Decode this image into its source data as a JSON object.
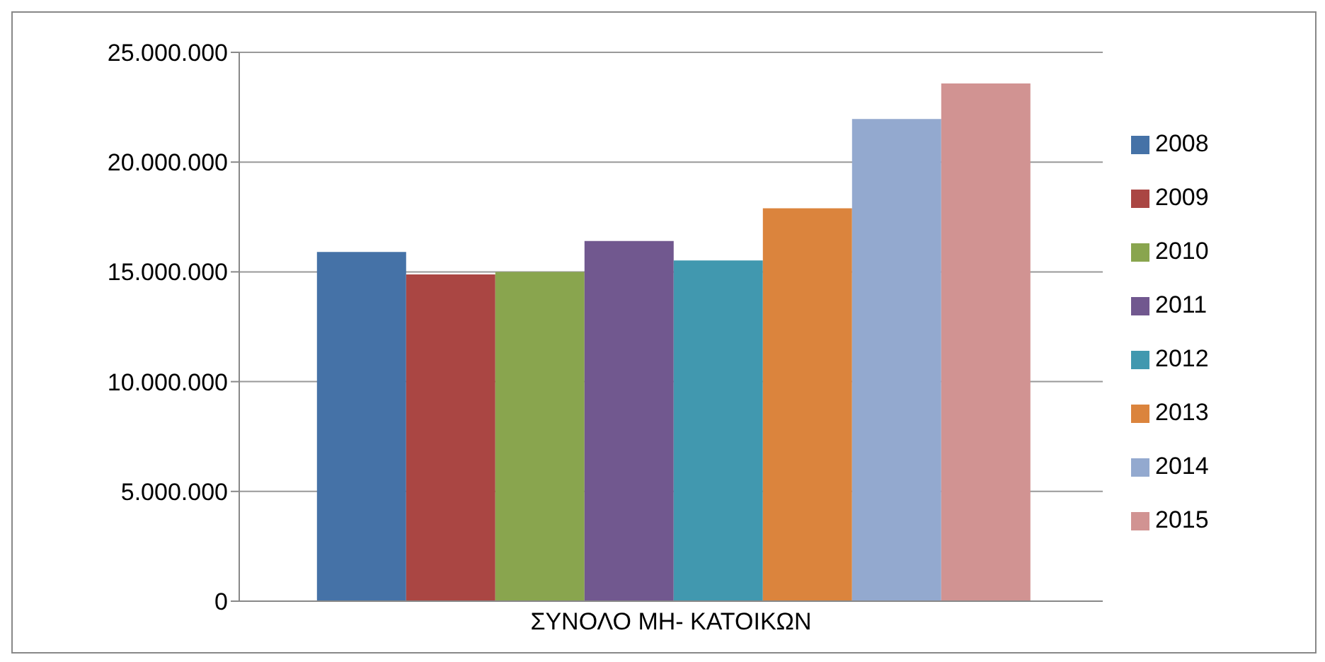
{
  "chart_data": {
    "type": "bar",
    "categories": [
      "ΣΥΝΟΛΟ ΜΗ- ΚΑΤΟΙΚΩΝ"
    ],
    "series": [
      {
        "name": "2008",
        "color": "#4572a7",
        "values": [
          15910000
        ]
      },
      {
        "name": "2009",
        "color": "#aa4643",
        "values": [
          14880000
        ]
      },
      {
        "name": "2010",
        "color": "#89a54e",
        "values": [
          15000000
        ]
      },
      {
        "name": "2011",
        "color": "#71588f",
        "values": [
          16410000
        ]
      },
      {
        "name": "2012",
        "color": "#4198af",
        "values": [
          15520000
        ]
      },
      {
        "name": "2013",
        "color": "#db843d",
        "values": [
          17900000
        ]
      },
      {
        "name": "2014",
        "color": "#93a9cf",
        "values": [
          21960000
        ]
      },
      {
        "name": "2015",
        "color": "#d19392",
        "values": [
          23580000
        ]
      }
    ],
    "ylim": [
      0,
      25000000
    ],
    "yticks": [
      {
        "value": 0,
        "label": "0"
      },
      {
        "value": 5000000,
        "label": "5.000.000"
      },
      {
        "value": 10000000,
        "label": "10.000.000"
      },
      {
        "value": 15000000,
        "label": "15.000.000"
      },
      {
        "value": 20000000,
        "label": "20.000.000"
      },
      {
        "value": 25000000,
        "label": "25.000.000"
      }
    ],
    "grid": "y",
    "legend": "right"
  }
}
